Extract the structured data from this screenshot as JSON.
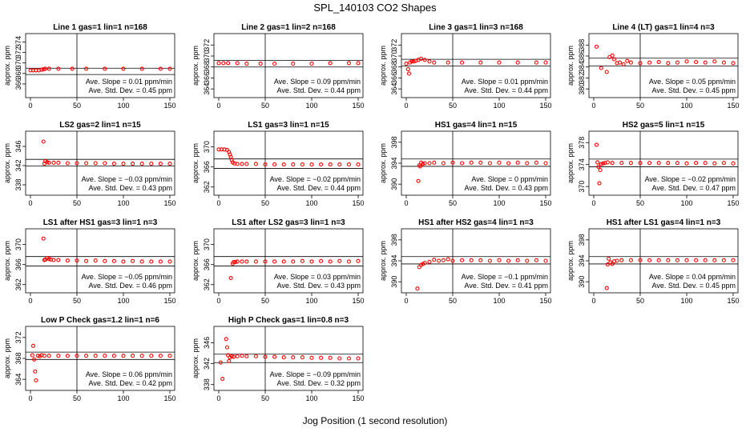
{
  "figure": {
    "title": "SPL_140103  CO2 Shapes",
    "xlabel": "Jog Position (1 second resolution)",
    "ylabel": "approx. ppm"
  },
  "colors": {
    "points": "#ff0000",
    "axes": "#000000"
  },
  "chart_data": [
    {
      "type": "scatter",
      "title": "Line 1 gas=1 lin=1 n=168",
      "xlim": [
        0,
        150
      ],
      "ylim": [
        364,
        375
      ],
      "yticks": [
        366,
        368,
        370,
        372,
        374
      ],
      "xticks": [
        0,
        50,
        100,
        150
      ],
      "vline": 50,
      "hlines": [
        369.0,
        367.8
      ],
      "slope": "Ave. Slope = 0.01 ppm/min",
      "std": "Ave. Std. Dev. = 0.45 ppm",
      "series": [
        {
          "x": [
            0,
            3,
            6,
            9,
            12,
            14,
            16,
            20,
            30,
            45,
            60,
            80,
            100,
            120,
            140,
            150
          ],
          "y": [
            368.6,
            368.6,
            368.6,
            368.6,
            368.7,
            368.8,
            368.9,
            368.9,
            368.9,
            368.9,
            368.9,
            368.9,
            368.9,
            368.9,
            368.9,
            368.9
          ]
        }
      ]
    },
    {
      "type": "scatter",
      "title": "Line 2 gas=1 lin=2 n=168",
      "xlim": [
        0,
        150
      ],
      "ylim": [
        363,
        373.5
      ],
      "yticks": [
        364,
        366,
        368,
        370,
        372
      ],
      "xticks": [
        0,
        50,
        100,
        150
      ],
      "vline": 50,
      "hlines": [
        369.2,
        368.0
      ],
      "slope": "Ave. Slope = 0.09 ppm/min",
      "std": "Ave. Std. Dev. = 0.44 ppm",
      "series": [
        {
          "x": [
            0,
            5,
            10,
            20,
            30,
            45,
            60,
            80,
            100,
            120,
            140,
            150
          ],
          "y": [
            368.7,
            368.7,
            368.7,
            368.7,
            368.6,
            368.6,
            368.6,
            368.6,
            368.6,
            368.7,
            368.7,
            368.7
          ]
        }
      ]
    },
    {
      "type": "scatter",
      "title": "Line 3 gas=1 lin=3 n=168",
      "xlim": [
        0,
        150
      ],
      "ylim": [
        363,
        373.5
      ],
      "yticks": [
        364,
        366,
        368,
        370,
        372
      ],
      "xticks": [
        0,
        50,
        100,
        150
      ],
      "vline": 50,
      "hlines": [
        369.4,
        368.2
      ],
      "slope": "Ave. Slope = 0.01 ppm/min",
      "std": "Ave. Std. Dev. = 0.44 ppm",
      "series": [
        {
          "x": [
            0,
            2,
            3,
            4,
            6,
            8,
            10,
            13,
            16,
            20,
            25,
            30,
            45,
            60,
            80,
            100,
            120,
            140,
            150
          ],
          "y": [
            368.6,
            367.6,
            366.8,
            368.8,
            369.0,
            369.0,
            369.1,
            369.3,
            369.5,
            369.3,
            369.0,
            368.8,
            368.8,
            368.8,
            368.8,
            368.8,
            368.8,
            368.8,
            368.8
          ]
        }
      ]
    },
    {
      "type": "scatter",
      "title": "Line 4 (LT) gas=1 lin=4 n=3",
      "xlim": [
        0,
        150
      ],
      "ylim": [
        379,
        389.5
      ],
      "yticks": [
        380,
        382,
        384,
        386,
        388
      ],
      "xticks": [
        0,
        50,
        100,
        150
      ],
      "vline": 50,
      "hlines": [
        385.6,
        384.2
      ],
      "slope": "Ave. Slope = 0.05 ppm/min",
      "std": "Ave. Std. Dev. = 0.45 ppm",
      "series": [
        {
          "x": [
            3,
            8,
            14,
            17,
            20,
            22,
            25,
            28,
            32,
            36,
            40,
            50,
            60,
            70,
            80,
            90,
            100,
            110,
            120,
            130,
            140,
            150
          ],
          "y": [
            387.7,
            383.8,
            383.1,
            385.8,
            386.1,
            385.4,
            384.7,
            384.8,
            384.5,
            385.1,
            384.8,
            384.7,
            384.8,
            384.9,
            384.7,
            384.8,
            385.0,
            384.9,
            384.8,
            385.0,
            384.8,
            384.7
          ]
        }
      ]
    },
    {
      "type": "scatter",
      "title": "LS2 gas=2 lin=1 n=15",
      "xlim": [
        0,
        150
      ],
      "ylim": [
        336.5,
        348.5
      ],
      "yticks": [
        338,
        342,
        346
      ],
      "xticks": [
        0,
        50,
        100,
        150
      ],
      "vline": 50,
      "hlines": [
        343.3,
        341.9
      ],
      "slope": "Ave. Slope = −0.03 ppm/min",
      "std": "Ave. Std. Dev. = 0.43 ppm",
      "series": [
        {
          "x": [
            14,
            15,
            16,
            18,
            20,
            25,
            30,
            40,
            50,
            60,
            70,
            80,
            90,
            100,
            110,
            120,
            130,
            140,
            150
          ],
          "y": [
            347.0,
            342.4,
            342.9,
            342.7,
            342.6,
            342.6,
            342.6,
            342.5,
            342.5,
            342.5,
            342.5,
            342.5,
            342.4,
            342.4,
            342.4,
            342.4,
            342.4,
            342.4,
            342.4
          ]
        }
      ]
    },
    {
      "type": "scatter",
      "title": "LS1 gas=3 lin=1 n=15",
      "xlim": [
        0,
        150
      ],
      "ylim": [
        361,
        372.5
      ],
      "yticks": [
        362,
        366,
        370
      ],
      "xticks": [
        0,
        50,
        100,
        150
      ],
      "vline": 50,
      "hlines": [
        367.6,
        365.7
      ],
      "slope": "Ave. Slope = −0.02 ppm/min",
      "std": "Ave. Std. Dev. = 0.44 ppm",
      "series": [
        {
          "x": [
            0,
            3,
            6,
            9,
            11,
            12,
            13,
            14,
            15,
            17,
            20,
            25,
            30,
            40,
            50,
            60,
            70,
            80,
            90,
            100,
            110,
            120,
            130,
            140,
            150
          ],
          "y": [
            369.5,
            369.5,
            369.5,
            369.4,
            369.0,
            368.5,
            368.0,
            367.4,
            366.9,
            366.7,
            366.6,
            366.6,
            366.6,
            366.6,
            366.5,
            366.5,
            366.5,
            366.5,
            366.5,
            366.5,
            366.5,
            366.5,
            366.5,
            366.5,
            366.5
          ]
        }
      ]
    },
    {
      "type": "scatter",
      "title": "HS1 gas=4 lin=1 n=15",
      "xlim": [
        0,
        150
      ],
      "ylim": [
        388.5,
        399.5
      ],
      "yticks": [
        390,
        394,
        398
      ],
      "xticks": [
        0,
        50,
        100,
        150
      ],
      "vline": 50,
      "hlines": [
        394.8,
        393.4
      ],
      "slope": "Ave. Slope = 0 ppm/min",
      "std": "Ave. Std. Dev. = 0.43 ppm",
      "series": [
        {
          "x": [
            13,
            14,
            15,
            16,
            18,
            20,
            25,
            30,
            40,
            50,
            60,
            70,
            80,
            90,
            100,
            110,
            120,
            130,
            140,
            150
          ],
          "y": [
            390.6,
            393.6,
            393.4,
            394.1,
            393.9,
            394.0,
            394.0,
            394.1,
            394.0,
            394.1,
            394.0,
            394.1,
            394.1,
            394.0,
            394.1,
            394.0,
            394.1,
            394.0,
            394.1,
            394.0
          ]
        }
      ]
    },
    {
      "type": "scatter",
      "title": "HS2 gas=5 lin=1 n=15",
      "xlim": [
        0,
        150
      ],
      "ylim": [
        369,
        379.5
      ],
      "yticks": [
        370,
        374,
        378
      ],
      "xticks": [
        0,
        50,
        100,
        150
      ],
      "vline": 50,
      "hlines": [
        375.0,
        373.6
      ],
      "slope": "Ave. Slope = −0.02 ppm/min",
      "std": "Ave. Std. Dev. = 0.47 ppm",
      "series": [
        {
          "x": [
            3,
            4,
            5,
            6,
            7,
            8,
            10,
            12,
            15,
            20,
            30,
            40,
            50,
            60,
            70,
            80,
            90,
            100,
            110,
            120,
            130,
            140,
            150
          ],
          "y": [
            377.6,
            374.4,
            373.6,
            370.6,
            373.0,
            374.1,
            374.2,
            374.3,
            374.4,
            374.3,
            374.3,
            374.3,
            374.3,
            374.3,
            374.3,
            374.3,
            374.3,
            374.2,
            374.3,
            374.3,
            374.2,
            374.3,
            374.2
          ]
        }
      ]
    },
    {
      "type": "scatter",
      "title": "LS1 after HS1 gas=3 lin=1 n=3",
      "xlim": [
        0,
        150
      ],
      "ylim": [
        361,
        372.5
      ],
      "yticks": [
        362,
        366,
        370
      ],
      "xticks": [
        0,
        50,
        100,
        150
      ],
      "vline": 50,
      "hlines": [
        367.6,
        365.7
      ],
      "slope": "Ave. Slope = −0.05 ppm/min",
      "std": "Ave. Std. Dev. = 0.46 ppm",
      "series": [
        {
          "x": [
            14,
            15,
            16,
            18,
            20,
            22,
            25,
            30,
            40,
            50,
            60,
            70,
            80,
            90,
            100,
            110,
            120,
            130,
            140,
            150
          ],
          "y": [
            371.2,
            366.9,
            367.0,
            367.3,
            367.1,
            367.0,
            366.9,
            366.9,
            366.8,
            366.8,
            366.7,
            366.8,
            366.7,
            366.7,
            366.6,
            366.7,
            366.6,
            366.6,
            366.6,
            366.6
          ]
        }
      ]
    },
    {
      "type": "scatter",
      "title": "LS1 after LS2 gas=3 lin=1 n=3",
      "xlim": [
        0,
        150
      ],
      "ylim": [
        361,
        372.5
      ],
      "yticks": [
        362,
        366,
        370
      ],
      "xticks": [
        0,
        50,
        100,
        150
      ],
      "vline": 50,
      "hlines": [
        367.6,
        365.7
      ],
      "slope": "Ave. Slope = 0.03 ppm/min",
      "std": "Ave. Std. Dev. = 0.43 ppm",
      "series": [
        {
          "x": [
            13,
            15,
            16,
            18,
            20,
            25,
            30,
            40,
            50,
            60,
            70,
            80,
            90,
            100,
            110,
            120,
            130,
            140,
            150
          ],
          "y": [
            363.3,
            366.2,
            366.5,
            366.5,
            366.6,
            366.6,
            366.6,
            366.6,
            366.6,
            366.6,
            366.6,
            366.6,
            366.7,
            366.6,
            366.7,
            366.6,
            366.7,
            366.6,
            366.7
          ]
        }
      ]
    },
    {
      "type": "scatter",
      "title": "HS1 after HS2 gas=4 lin=1 n=3",
      "xlim": [
        0,
        150
      ],
      "ylim": [
        388.5,
        399.5
      ],
      "yticks": [
        390,
        394,
        398
      ],
      "xticks": [
        0,
        50,
        100,
        150
      ],
      "vline": 50,
      "hlines": [
        394.8,
        393.4
      ],
      "slope": "Ave. Slope = −0.1 ppm/min",
      "std": "Ave. Std. Dev. = 0.41 ppm",
      "series": [
        {
          "x": [
            12,
            14,
            16,
            18,
            20,
            25,
            30,
            35,
            40,
            45,
            50,
            60,
            70,
            80,
            90,
            100,
            110,
            120,
            130,
            140,
            150
          ],
          "y": [
            388.7,
            392.8,
            393.2,
            393.4,
            393.6,
            393.8,
            394.2,
            394.0,
            394.1,
            394.3,
            394.0,
            394.1,
            394.1,
            394.1,
            394.0,
            394.1,
            394.0,
            394.1,
            394.0,
            394.1,
            394.0
          ]
        }
      ]
    },
    {
      "type": "scatter",
      "title": "HS1 after LS1 gas=4 lin=1 n=3",
      "xlim": [
        0,
        150
      ],
      "ylim": [
        388.5,
        399.5
      ],
      "yticks": [
        390,
        394,
        398
      ],
      "xticks": [
        0,
        50,
        100,
        150
      ],
      "vline": 50,
      "hlines": [
        394.8,
        393.4
      ],
      "slope": "Ave. Slope = 0.04 ppm/min",
      "std": "Ave. Std. Dev. = 0.45 ppm",
      "series": [
        {
          "x": [
            14,
            15,
            16,
            18,
            20,
            22,
            25,
            30,
            40,
            50,
            60,
            70,
            80,
            90,
            100,
            110,
            120,
            130,
            140,
            150
          ],
          "y": [
            388.8,
            393.3,
            394.4,
            393.7,
            393.4,
            393.9,
            394.0,
            394.1,
            394.1,
            394.1,
            394.1,
            394.1,
            394.1,
            394.1,
            394.1,
            394.1,
            394.1,
            394.1,
            394.1,
            394.1
          ]
        }
      ]
    },
    {
      "type": "scatter",
      "title": "Low P Check gas=1.2 lin=1 n=6",
      "xlim": [
        0,
        150
      ],
      "ylim": [
        362.5,
        373.5
      ],
      "yticks": [
        364,
        368,
        372
      ],
      "xticks": [
        0,
        50,
        100,
        150
      ],
      "vline": 50,
      "hlines": [
        369.2,
        367.8
      ],
      "slope": "Ave. Slope = 0.06 ppm/min",
      "std": "Ave. Std. Dev. = 0.42 ppm",
      "series": [
        {
          "x": [
            2,
            3,
            4,
            5,
            6,
            8,
            10,
            12,
            15,
            20,
            30,
            40,
            50,
            60,
            70,
            80,
            90,
            100,
            110,
            120,
            130,
            140,
            150
          ],
          "y": [
            368.6,
            370.4,
            367.8,
            365.5,
            363.8,
            368.5,
            368.4,
            368.6,
            368.5,
            368.5,
            368.5,
            368.5,
            368.5,
            368.5,
            368.5,
            368.5,
            368.5,
            368.5,
            368.5,
            368.5,
            368.5,
            368.5,
            368.5
          ]
        }
      ]
    },
    {
      "type": "scatter",
      "title": "High P Check gas=1 lin=0.8 n=3",
      "xlim": [
        0,
        150
      ],
      "ylim": [
        337.5,
        348.5
      ],
      "yticks": [
        338,
        342,
        346
      ],
      "xticks": [
        0,
        50,
        100,
        150
      ],
      "vline": 50,
      "hlines": [
        343.8,
        342.2
      ],
      "slope": "Ave. Slope = −0.09 ppm/min",
      "std": "Ave. Std. Dev. = 0.32 ppm",
      "series": [
        {
          "x": [
            2,
            4,
            8,
            9,
            10,
            11,
            12,
            14,
            16,
            20,
            25,
            30,
            40,
            50,
            60,
            70,
            80,
            90,
            100,
            110,
            120,
            130,
            140,
            150
          ],
          "y": [
            342.2,
            339.1,
            346.7,
            345.1,
            343.6,
            342.5,
            343.2,
            343.4,
            343.3,
            343.4,
            343.5,
            343.4,
            343.4,
            343.3,
            343.3,
            343.2,
            343.2,
            343.2,
            343.1,
            343.1,
            343.1,
            343.0,
            343.0,
            343.0
          ]
        }
      ]
    }
  ]
}
